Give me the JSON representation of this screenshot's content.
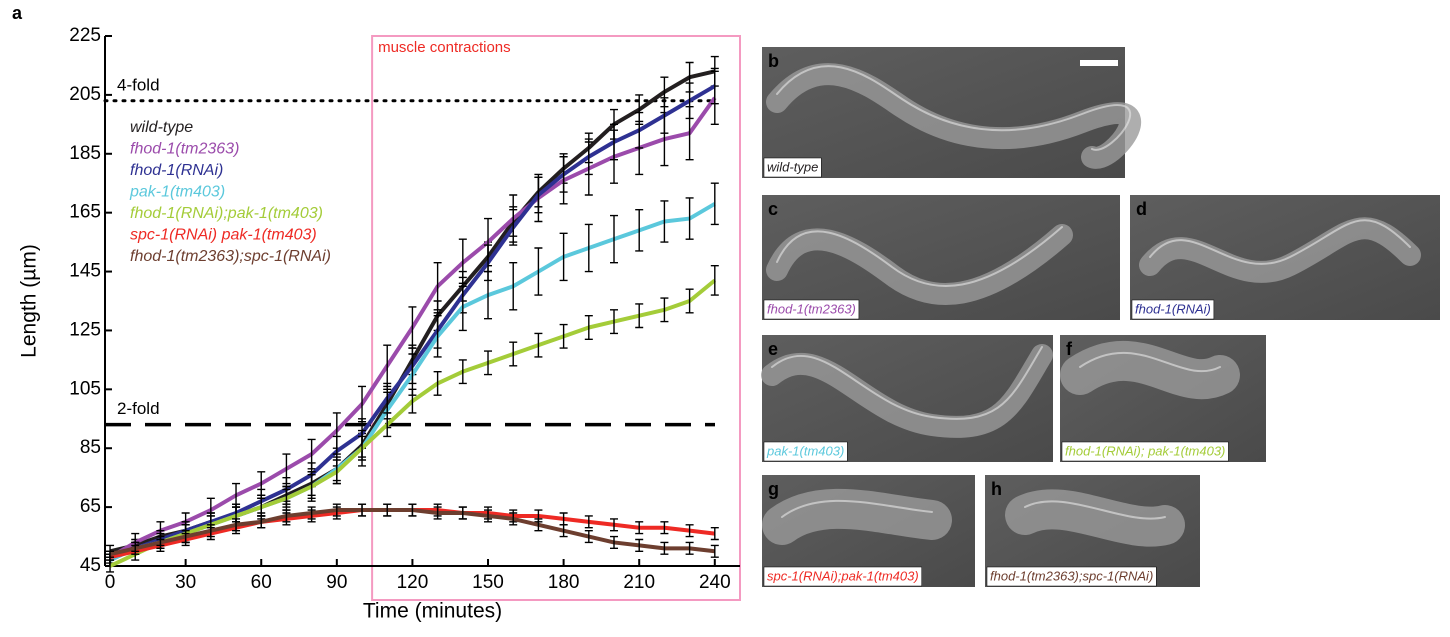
{
  "panel_letter": "a",
  "chart_data": {
    "type": "line",
    "x_label": "Time (minutes)",
    "y_label": "Length (µm)",
    "xlim": [
      -2,
      250
    ],
    "ylim": [
      45,
      225
    ],
    "xticks": [
      0,
      30,
      60,
      90,
      120,
      150,
      180,
      210,
      240
    ],
    "yticks": [
      45,
      65,
      85,
      105,
      125,
      145,
      165,
      185,
      205,
      225
    ],
    "legend": "upper left",
    "x": [
      0,
      10,
      20,
      30,
      40,
      50,
      60,
      70,
      80,
      90,
      100,
      110,
      120,
      130,
      140,
      150,
      160,
      170,
      180,
      190,
      200,
      210,
      220,
      230,
      240
    ],
    "region": {
      "label": "muscle contractions",
      "x": [
        104,
        250
      ],
      "color": "#f49ac1",
      "label_color": "#ee2a24"
    },
    "reference_lines": [
      {
        "label": "4-fold",
        "value": 203,
        "style": "dotted"
      },
      {
        "label": "2-fold",
        "value": 93,
        "style": "dashed"
      }
    ],
    "series": [
      {
        "name": "wild-type",
        "color": "#231f20",
        "values": [
          50,
          52,
          55,
          57,
          60,
          62,
          65,
          69,
          73,
          78,
          86,
          100,
          115,
          130,
          140,
          150,
          162,
          172,
          180,
          187,
          195,
          200,
          206,
          211,
          213
        ],
        "errors": [
          2,
          2,
          2,
          3,
          3,
          3,
          3,
          3,
          4,
          4,
          4,
          5,
          5,
          5,
          5,
          5,
          5,
          5,
          5,
          5,
          5,
          5,
          5,
          5,
          5
        ]
      },
      {
        "name": "fhod-1(tm2363)",
        "color": "#9b4bab",
        "values": [
          48,
          53,
          57,
          60,
          64,
          69,
          73,
          78,
          83,
          91,
          100,
          113,
          126,
          140,
          148,
          155,
          163,
          170,
          176,
          180,
          184,
          187,
          190,
          192,
          204
        ],
        "errors": [
          2,
          3,
          3,
          3,
          4,
          4,
          4,
          5,
          5,
          6,
          6,
          7,
          7,
          8,
          8,
          8,
          8,
          8,
          8,
          9,
          9,
          9,
          9,
          9,
          9
        ]
      },
      {
        "name": "fhod-1(RNAi)",
        "color": "#2e3192",
        "values": [
          47,
          51,
          54,
          57,
          60,
          63,
          67,
          71,
          76,
          84,
          90,
          102,
          113,
          125,
          137,
          148,
          160,
          171,
          178,
          184,
          189,
          193,
          198,
          203,
          208
        ],
        "errors": [
          2,
          2,
          3,
          3,
          3,
          3,
          4,
          4,
          4,
          5,
          5,
          5,
          6,
          6,
          6,
          6,
          6,
          6,
          6,
          6,
          6,
          6,
          6,
          6,
          6
        ]
      },
      {
        "name": "pak-1(tm403)",
        "color": "#5bc8dc",
        "values": [
          47,
          51,
          53,
          56,
          59,
          62,
          65,
          68,
          72,
          78,
          85,
          98,
          110,
          123,
          133,
          137,
          140,
          145,
          150,
          153,
          156,
          159,
          162,
          163,
          168
        ],
        "errors": [
          2,
          2,
          3,
          3,
          3,
          4,
          4,
          4,
          5,
          5,
          6,
          6,
          7,
          7,
          8,
          8,
          8,
          8,
          8,
          8,
          8,
          7,
          7,
          7,
          7
        ]
      },
      {
        "name": "fhod-1(RNAi);pak-1(tm403)",
        "color": "#a4cc39",
        "values": [
          45,
          49,
          53,
          56,
          59,
          62,
          65,
          68,
          72,
          77,
          85,
          93,
          101,
          107,
          111,
          114,
          117,
          120,
          123,
          126,
          128,
          130,
          132,
          135,
          142
        ],
        "errors": [
          2,
          2,
          2,
          3,
          3,
          3,
          3,
          3,
          4,
          4,
          4,
          4,
          4,
          4,
          4,
          4,
          4,
          4,
          4,
          4,
          4,
          4,
          4,
          4,
          5
        ]
      },
      {
        "name": "spc-1(RNAi) pak-1(tm403)",
        "color": "#ee2a24",
        "values": [
          48,
          50,
          52,
          54,
          56,
          58,
          60,
          61,
          62,
          63,
          64,
          64,
          64,
          64,
          63,
          63,
          62,
          62,
          61,
          60,
          59,
          58,
          58,
          57,
          56
        ],
        "errors": [
          1,
          1,
          1,
          2,
          2,
          2,
          2,
          2,
          2,
          2,
          2,
          2,
          2,
          2,
          2,
          2,
          2,
          2,
          2,
          2,
          2,
          2,
          2,
          2,
          2
        ]
      },
      {
        "name": "fhod-1(tm2363);spc-1(RNAi)",
        "color": "#6d3e2f",
        "values": [
          49,
          51,
          53,
          55,
          57,
          59,
          60,
          62,
          63,
          64,
          64,
          64,
          64,
          63,
          63,
          62,
          61,
          59,
          57,
          55,
          53,
          52,
          51,
          51,
          50
        ],
        "errors": [
          1,
          1,
          1,
          2,
          2,
          2,
          2,
          2,
          2,
          2,
          2,
          2,
          2,
          2,
          2,
          2,
          2,
          2,
          2,
          2,
          2,
          2,
          2,
          2,
          2
        ]
      }
    ]
  },
  "panels": [
    {
      "letter": "b",
      "caption": "wild-type",
      "color": "#231f20"
    },
    {
      "letter": "c",
      "caption": "fhod-1(tm2363)",
      "color": "#9b4bab"
    },
    {
      "letter": "d",
      "caption": "fhod-1(RNAi)",
      "color": "#2e3192"
    },
    {
      "letter": "e",
      "caption": "pak-1(tm403)",
      "color": "#5bc8dc"
    },
    {
      "letter": "f",
      "caption": "fhod-1(RNAi); pak-1(tm403)",
      "color": "#a4cc39"
    },
    {
      "letter": "g",
      "caption": "spc-1(RNAi);pak-1(tm403)",
      "color": "#ee2a24"
    },
    {
      "letter": "h",
      "caption": "fhod-1(tm2363);spc-1(RNAi)",
      "color": "#6d3e2f"
    }
  ]
}
